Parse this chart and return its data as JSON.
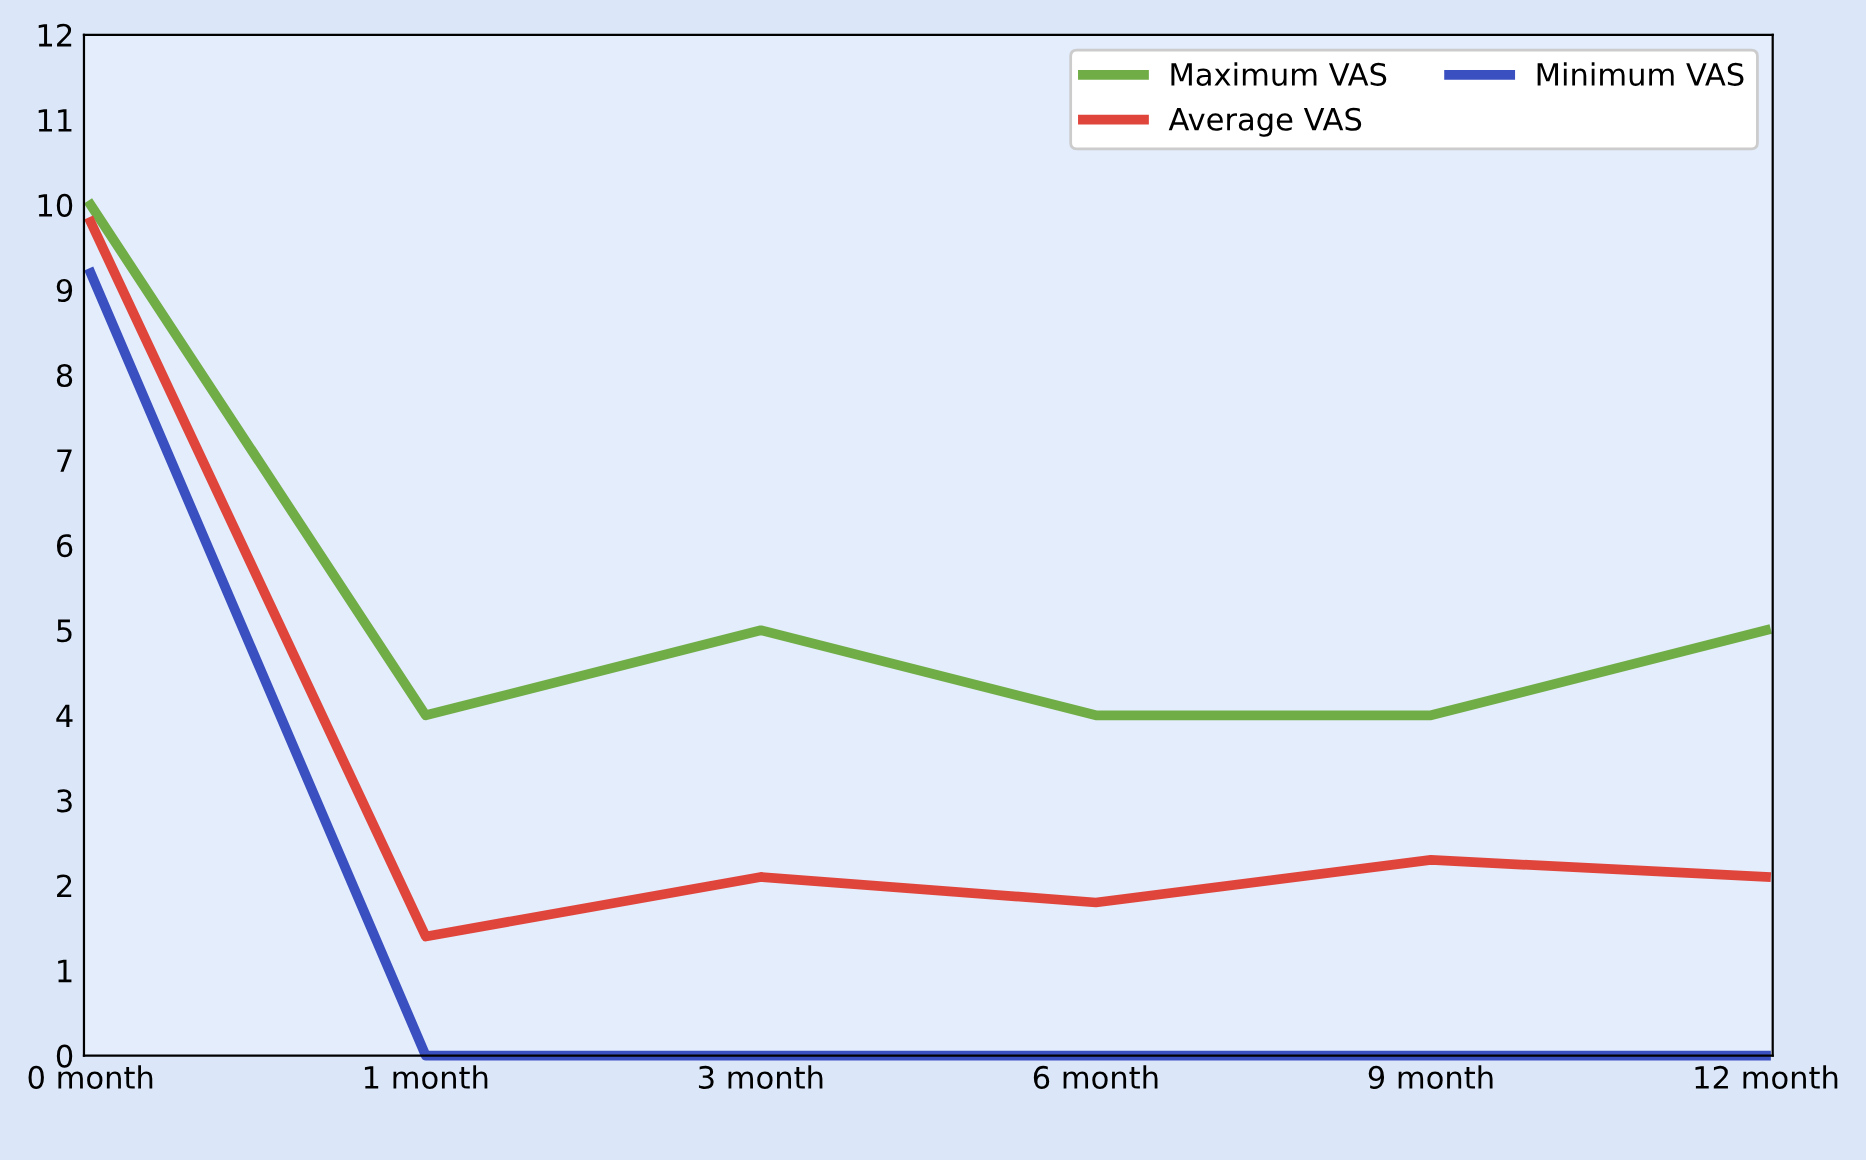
{
  "chart_data": {
    "type": "line",
    "categories": [
      "0 month",
      "1 month",
      "3 month",
      "6 month",
      "9 month",
      "12 month"
    ],
    "series": [
      {
        "name": "Maximum VAS",
        "color": "#70ad47",
        "values": [
          10,
          4,
          5,
          4,
          4,
          5
        ]
      },
      {
        "name": "Average VAS",
        "color": "#e0453c",
        "values": [
          9.8,
          1.4,
          2.1,
          1.8,
          2.3,
          2.1
        ]
      },
      {
        "name": "Minimum VAS",
        "color": "#3a4fc0",
        "values": [
          9.2,
          0,
          0,
          0,
          0,
          0
        ]
      }
    ],
    "ylim": [
      0,
      12
    ],
    "yticks": [
      0,
      1,
      2,
      3,
      4,
      5,
      6,
      7,
      8,
      9,
      10,
      11,
      12
    ],
    "grid": false,
    "legend": "top right",
    "marker": "none",
    "line_style": "solid"
  }
}
